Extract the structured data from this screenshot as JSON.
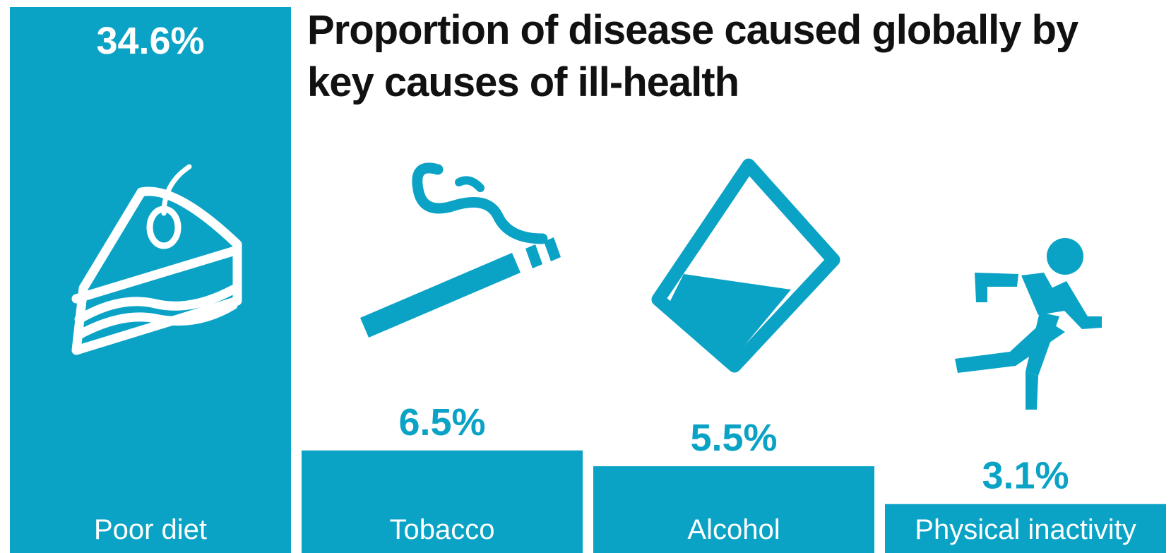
{
  "title": "Proportion of disease caused globally by key causes of ill-health",
  "colors": {
    "bar": "#0aa3c6",
    "title": "#111111",
    "label_on_bar": "#ffffff"
  },
  "chart_data": {
    "type": "bar",
    "title": "Proportion of disease caused globally by key causes of ill-health",
    "categories": [
      "Poor diet",
      "Tobacco",
      "Alcohol",
      "Physical inactivity"
    ],
    "values": [
      34.6,
      6.5,
      5.5,
      3.1
    ],
    "value_labels": [
      "34.6%",
      "6.5%",
      "5.5%",
      "3.1%"
    ],
    "icons": [
      "cake-slice-icon",
      "cigarette-icon",
      "glass-icon",
      "running-person-icon"
    ],
    "xlabel": "",
    "ylabel": "",
    "grid": false,
    "legend": "none"
  }
}
